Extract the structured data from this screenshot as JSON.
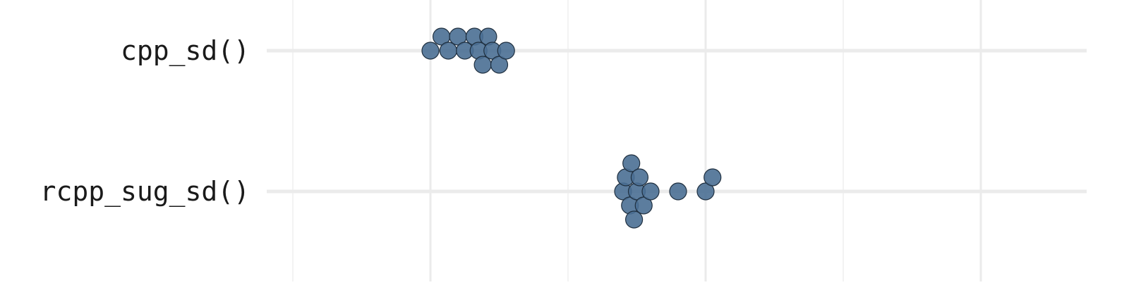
{
  "chart_data": {
    "type": "scatter",
    "style": "beeswarm",
    "orientation": "horizontal",
    "title": "",
    "xlabel": "",
    "ylabel": "",
    "categories": [
      "cpp_sd()",
      "rcpp_sug_sd()"
    ],
    "xlim": [
      0,
      6
    ],
    "x_gridlines_major": [
      2,
      4,
      6
    ],
    "x_gridlines_minor": [
      1,
      3,
      5
    ],
    "grid": true,
    "legend": "none",
    "point_color": "#4a6f93",
    "point_edge_color": "#1f2f3f",
    "gridline_color": "#ebebeb",
    "series": [
      {
        "category": "cpp_sd()",
        "x": [
          2.0,
          2.08,
          2.13,
          2.2,
          2.25,
          2.32,
          2.35,
          2.38,
          2.42,
          2.45,
          2.5,
          2.55
        ]
      },
      {
        "category": "rcpp_sug_sd()",
        "x": [
          3.4,
          3.42,
          3.45,
          3.46,
          3.48,
          3.5,
          3.52,
          3.55,
          3.6,
          3.8,
          4.0,
          4.05
        ]
      }
    ]
  }
}
